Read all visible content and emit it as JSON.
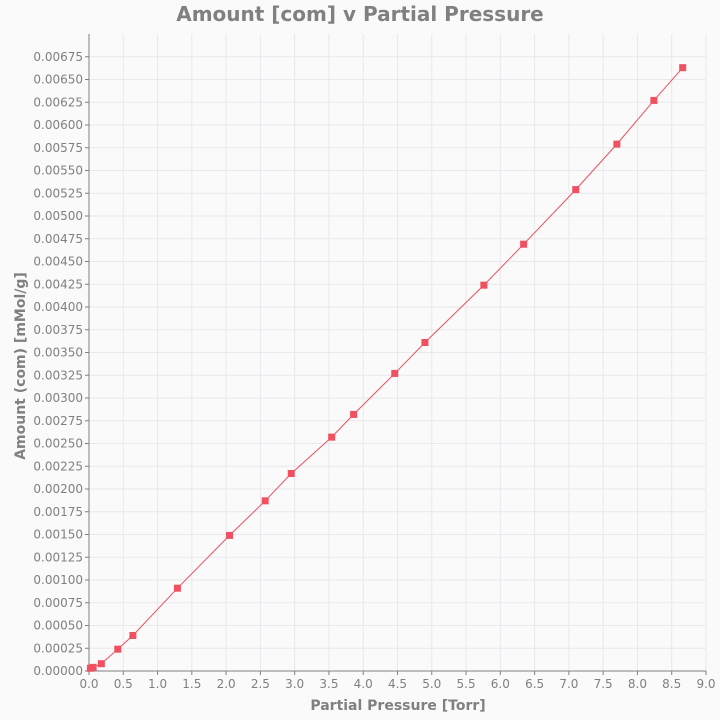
{
  "chart_data": {
    "type": "line",
    "title": "Amount [com] v Partial Pressure",
    "xlabel": "Partial Pressure [Torr]",
    "ylabel": "Amount (com) [mMol/g]",
    "xlim": [
      0,
      9.0
    ],
    "ylim": [
      0,
      0.007
    ],
    "x_ticks": [
      "0.0",
      "0.5",
      "1.0",
      "1.5",
      "2.0",
      "2.5",
      "3.0",
      "3.5",
      "4.0",
      "4.5",
      "5.0",
      "5.5",
      "6.0",
      "6.5",
      "7.0",
      "7.5",
      "8.0",
      "8.5",
      "9.0"
    ],
    "y_ticks": [
      "0.00000",
      "0.00025",
      "0.00050",
      "0.00075",
      "0.00100",
      "0.00125",
      "0.00150",
      "0.00175",
      "0.00200",
      "0.00225",
      "0.00250",
      "0.00275",
      "0.00300",
      "0.00325",
      "0.00350",
      "0.00375",
      "0.00400",
      "0.00425",
      "0.00450",
      "0.00475",
      "0.00500",
      "0.00525",
      "0.00550",
      "0.00575",
      "0.00600",
      "0.00625",
      "0.00650",
      "0.00675"
    ],
    "grid": true,
    "series_color": "#f05060",
    "series": [
      {
        "x": [
          0.02,
          0.06,
          0.18,
          0.42,
          0.64,
          1.29,
          2.05,
          2.57,
          2.95,
          3.54,
          3.86,
          4.46,
          4.9,
          5.76,
          6.34,
          7.1,
          7.7,
          8.24,
          8.66
        ],
        "y": [
          3e-05,
          4e-05,
          8e-05,
          0.00024,
          0.00039,
          0.00091,
          0.00149,
          0.00187,
          0.00217,
          0.00257,
          0.00282,
          0.00327,
          0.00361,
          0.00424,
          0.00469,
          0.00529,
          0.00579,
          0.00627,
          0.00663
        ]
      }
    ]
  }
}
